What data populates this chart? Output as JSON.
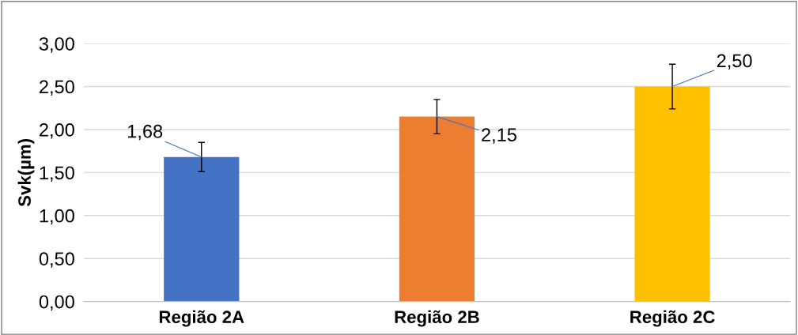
{
  "chart_data": {
    "type": "bar",
    "ylabel": "Svk(µm)",
    "categories": [
      "Região 2A",
      "Região 2B",
      "Região 2C"
    ],
    "values": [
      1.68,
      2.15,
      2.5
    ],
    "colors": [
      "#4472c4",
      "#ed7d31",
      "#ffc000"
    ],
    "errors": [
      0.17,
      0.2,
      0.26
    ],
    "value_labels": [
      "1,68",
      "2,15",
      "2,50"
    ],
    "ylim": [
      0,
      3
    ],
    "yticks": [
      {
        "value": 0,
        "label": "0,00"
      },
      {
        "value": 0.5,
        "label": "0,50"
      },
      {
        "value": 1,
        "label": "1,00"
      },
      {
        "value": 1.5,
        "label": "1,50"
      },
      {
        "value": 2,
        "label": "2,00"
      },
      {
        "value": 2.5,
        "label": "2,50"
      },
      {
        "value": 3,
        "label": "3,00"
      }
    ],
    "grid": "y"
  }
}
